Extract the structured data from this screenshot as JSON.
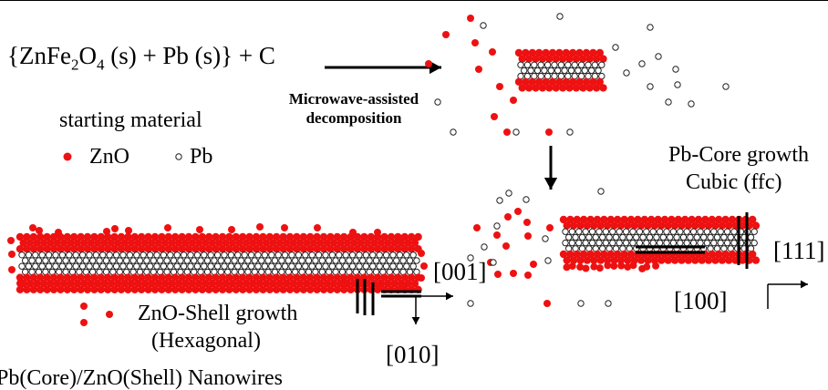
{
  "colors": {
    "zno": "#ee1111",
    "pb_fill": "#ffffff",
    "pb_stroke": "#222222",
    "line": "#000000"
  },
  "equation": {
    "brace_open": "{ZnFe",
    "sub_2": "2",
    "o": "O",
    "sub_4": "4",
    "rest": " (s) + Pb (s)} + C"
  },
  "reaction_label": {
    "line1": "Microwave-assisted",
    "line2": "decomposition"
  },
  "legend": {
    "title": "starting material",
    "zno_label": "ZnO",
    "pb_label": "Pb"
  },
  "pb_core": {
    "line1": "Pb-Core growth",
    "line2": "Cubic (ffc)"
  },
  "directions": {
    "d111": "[111]",
    "d100": "[100]",
    "d001": "[001]",
    "d010": "[010]"
  },
  "zno_shell": {
    "line1": "ZnO-Shell growth",
    "line2": "(Hexagonal)"
  },
  "caption": "Pb(Core)/ZnO(Shell) Nanowires"
}
